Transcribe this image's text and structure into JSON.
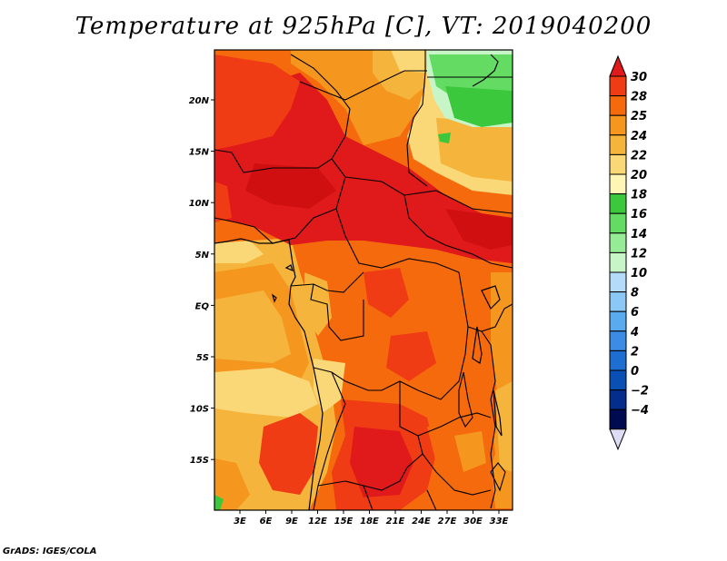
{
  "title": "Temperature at 925hPa [C], VT: 2019040200",
  "credit": "GrADS: IGES/COLA",
  "lat_labels": [
    "20N",
    "15N",
    "10N",
    "5N",
    "EQ",
    "5S",
    "10S",
    "15S"
  ],
  "lon_labels": [
    "3E",
    "6E",
    "9E",
    "12E",
    "15E",
    "18E",
    "21E",
    "24E",
    "27E",
    "30E",
    "33E"
  ],
  "colorbar": {
    "labels": [
      "30",
      "28",
      "25",
      "24",
      "22",
      "20",
      "18",
      "16",
      "14",
      "12",
      "10",
      "8",
      "6",
      "4",
      "2",
      "0",
      "-2",
      "-4"
    ],
    "colors": [
      "#e01a1a",
      "#f03c14",
      "#f56a0d",
      "#f5961e",
      "#f5b43c",
      "#fad878",
      "#fff5b4",
      "#3cc83c",
      "#64dc64",
      "#96eb96",
      "#c8f5c8",
      "#b4dcfa",
      "#8cc8f5",
      "#5aaaf0",
      "#3c8ce6",
      "#1e6ed2",
      "#0a50b4",
      "#052d8c",
      "#000a50",
      "#dcdcf5"
    ]
  }
}
